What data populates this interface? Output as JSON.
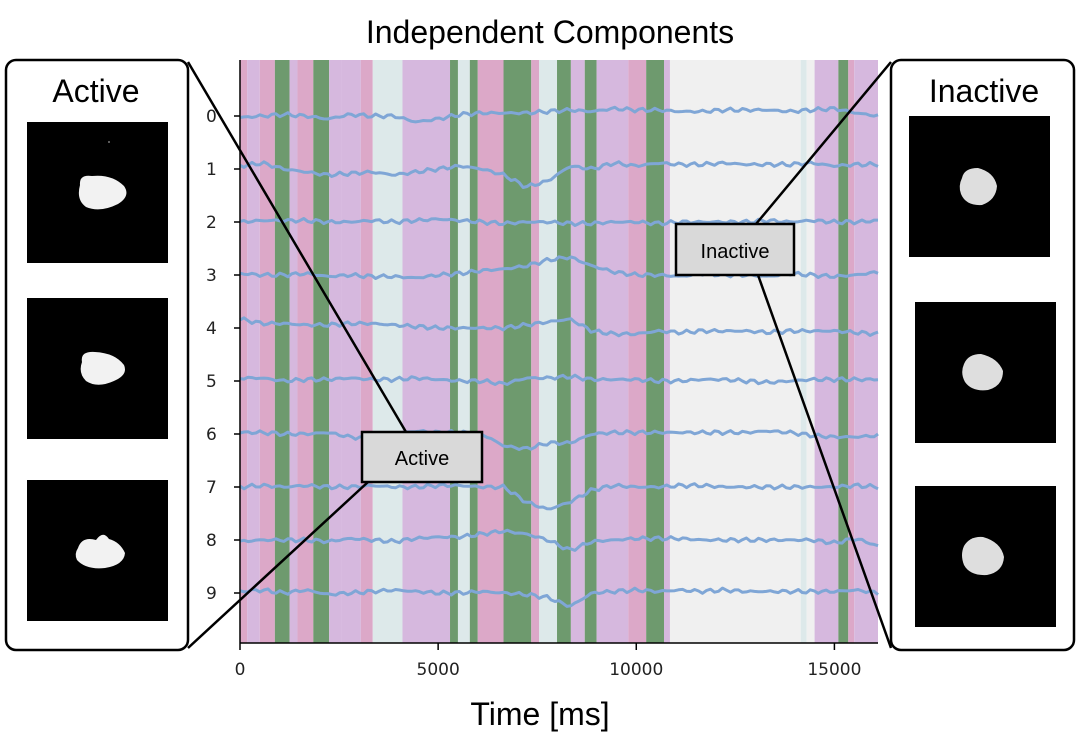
{
  "chart_data": {
    "type": "line",
    "title": "Independent Components",
    "xlabel": "Time [ms]",
    "ylabel": "",
    "xlim": [
      0,
      16100
    ],
    "x_ticks": [
      0,
      5000,
      10000,
      15000
    ],
    "y_ticks": [
      "0",
      "1",
      "2",
      "3",
      "4",
      "5",
      "6",
      "7",
      "8",
      "9"
    ],
    "series_color": "#7fa6d6",
    "series": [
      {
        "values": [
          -0.05,
          0.0,
          0.05,
          0.0,
          -0.1,
          0.05,
          0.0,
          0.0,
          -0.2,
          -0.1,
          0.05,
          0.1,
          0.1,
          0.1,
          0.15,
          0.2,
          0.15,
          0.25,
          0.2,
          0.2,
          0.15,
          0.15,
          0.2,
          0.2,
          0.2,
          0.15,
          0.2,
          0.25,
          0.1,
          0.0
        ]
      },
      {
        "values": [
          0.1,
          0.2,
          0.0,
          -0.1,
          -0.2,
          -0.15,
          -0.1,
          -0.2,
          -0.1,
          0.0,
          0.1,
          0.0,
          -0.2,
          -0.6,
          -0.4,
          0.1,
          0.0,
          0.2,
          0.1,
          0.2,
          0.15,
          0.15,
          0.2,
          0.15,
          0.15,
          0.15,
          0.2,
          0.1,
          0.15,
          0.15
        ]
      },
      {
        "values": [
          0.0,
          0.05,
          0.05,
          0.05,
          0.0,
          0.0,
          0.05,
          0.0,
          0.05,
          0.1,
          0.05,
          0.0,
          -0.05,
          0.0,
          0.0,
          -0.05,
          -0.05,
          0.0,
          0.0,
          -0.05,
          0.0,
          0.0,
          0.0,
          0.0,
          0.05,
          0.0,
          0.05,
          0.0,
          0.0,
          0.05
        ]
      },
      {
        "values": [
          0.05,
          0.0,
          0.0,
          0.05,
          -0.05,
          0.0,
          -0.05,
          -0.05,
          -0.1,
          0.0,
          0.05,
          0.15,
          0.2,
          0.3,
          0.5,
          0.6,
          0.3,
          0.1,
          0.0,
          0.0,
          -0.05,
          0.05,
          0.0,
          0.0,
          -0.05,
          0.05,
          0.0,
          -0.05,
          0.0,
          0.1
        ]
      },
      {
        "values": [
          0.3,
          0.15,
          0.15,
          0.1,
          0.1,
          0.15,
          0.15,
          0.1,
          0.05,
          0.0,
          0.0,
          0.0,
          0.0,
          0.1,
          0.2,
          0.3,
          -0.1,
          -0.2,
          -0.2,
          -0.1,
          -0.15,
          -0.1,
          -0.1,
          -0.1,
          -0.15,
          -0.1,
          -0.1,
          -0.1,
          -0.15,
          -0.2
        ]
      },
      {
        "values": [
          0.1,
          0.1,
          0.0,
          0.05,
          0.05,
          0.1,
          0.05,
          0.05,
          0.1,
          0.05,
          0.0,
          0.0,
          -0.1,
          0.1,
          0.1,
          0.15,
          0.05,
          0.05,
          0.05,
          0.0,
          0.0,
          0.05,
          0.05,
          0.0,
          -0.05,
          0.0,
          0.05,
          0.05,
          0.05,
          0.05
        ]
      },
      {
        "values": [
          0.05,
          0.05,
          0.0,
          0.0,
          0.05,
          -0.1,
          -0.15,
          0.0,
          0.1,
          0.05,
          0.05,
          0.0,
          -0.4,
          -0.5,
          -0.3,
          -0.3,
          0.0,
          0.05,
          0.05,
          0.05,
          0.05,
          0.05,
          0.05,
          0.05,
          0.1,
          0.05,
          -0.05,
          -0.1,
          -0.1,
          -0.05
        ]
      },
      {
        "values": [
          0.0,
          0.05,
          0.0,
          0.05,
          0.0,
          0.0,
          0.05,
          0.0,
          0.0,
          0.05,
          0.05,
          0.0,
          0.0,
          -0.5,
          -0.75,
          -0.5,
          -0.1,
          0.05,
          0.0,
          0.0,
          0.05,
          0.05,
          0.0,
          0.0,
          0.0,
          0.0,
          0.0,
          0.0,
          0.05,
          0.0
        ]
      },
      {
        "values": [
          -0.05,
          0.0,
          0.0,
          0.0,
          -0.05,
          0.05,
          0.0,
          -0.05,
          0.05,
          0.1,
          0.1,
          0.2,
          0.3,
          0.2,
          0.0,
          -0.35,
          -0.05,
          0.0,
          0.05,
          0.05,
          0.05,
          0.0,
          0.0,
          0.0,
          0.0,
          0.0,
          0.0,
          -0.1,
          0.05,
          -0.2
        ]
      },
      {
        "values": [
          0.05,
          0.1,
          0.0,
          0.1,
          -0.05,
          0.0,
          0.05,
          0.1,
          0.05,
          0.0,
          0.0,
          0.05,
          0.0,
          -0.05,
          -0.15,
          -0.45,
          0.0,
          0.05,
          0.1,
          0.05,
          0.1,
          0.05,
          0.1,
          0.05,
          0.05,
          0.05,
          0.05,
          0.05,
          0.1,
          0.0
        ]
      }
    ],
    "bands": [
      {
        "start": 0,
        "end": 180,
        "state": "pink"
      },
      {
        "start": 180,
        "end": 500,
        "state": "lavender"
      },
      {
        "start": 500,
        "end": 880,
        "state": "pink"
      },
      {
        "start": 880,
        "end": 1250,
        "state": "green"
      },
      {
        "start": 1250,
        "end": 1450,
        "state": "lavender"
      },
      {
        "start": 1450,
        "end": 1850,
        "state": "pink"
      },
      {
        "start": 1850,
        "end": 2250,
        "state": "green"
      },
      {
        "start": 2250,
        "end": 2550,
        "state": "lavender"
      },
      {
        "start": 2550,
        "end": 3050,
        "state": "lavender"
      },
      {
        "start": 3050,
        "end": 3350,
        "state": "pink"
      },
      {
        "start": 3350,
        "end": 4100,
        "state": "lightblue"
      },
      {
        "start": 4100,
        "end": 5300,
        "state": "lavender"
      },
      {
        "start": 5300,
        "end": 5500,
        "state": "green"
      },
      {
        "start": 5500,
        "end": 5800,
        "state": "lightblue"
      },
      {
        "start": 5800,
        "end": 6000,
        "state": "green"
      },
      {
        "start": 6000,
        "end": 6650,
        "state": "pink"
      },
      {
        "start": 6650,
        "end": 7350,
        "state": "green"
      },
      {
        "start": 7350,
        "end": 7550,
        "state": "pink"
      },
      {
        "start": 7550,
        "end": 8000,
        "state": "lightblue"
      },
      {
        "start": 8000,
        "end": 8350,
        "state": "green"
      },
      {
        "start": 8350,
        "end": 8700,
        "state": "lavender"
      },
      {
        "start": 8700,
        "end": 9000,
        "state": "green"
      },
      {
        "start": 9000,
        "end": 9800,
        "state": "lavender"
      },
      {
        "start": 9800,
        "end": 10250,
        "state": "pink"
      },
      {
        "start": 10250,
        "end": 10700,
        "state": "green"
      },
      {
        "start": 10700,
        "end": 10850,
        "state": "lavender"
      },
      {
        "start": 10850,
        "end": 14150,
        "state": "lightgray"
      },
      {
        "start": 14150,
        "end": 14300,
        "state": "lightblue"
      },
      {
        "start": 14300,
        "end": 14500,
        "state": "lightgray"
      },
      {
        "start": 14500,
        "end": 15100,
        "state": "lavender"
      },
      {
        "start": 15100,
        "end": 15350,
        "state": "green"
      },
      {
        "start": 15350,
        "end": 15500,
        "state": "pink"
      },
      {
        "start": 15500,
        "end": 16100,
        "state": "lavender"
      }
    ],
    "band_colors": {
      "pink": "#dca8c8",
      "lavender": "#d6b8de",
      "green": "#6e9a6e",
      "lightblue": "#dde9ea",
      "lightgray": "#f0f0f0"
    }
  },
  "panels": {
    "active_title": "Active",
    "inactive_title": "Inactive"
  },
  "callouts": {
    "active_label": "Active",
    "inactive_label": "Inactive"
  }
}
